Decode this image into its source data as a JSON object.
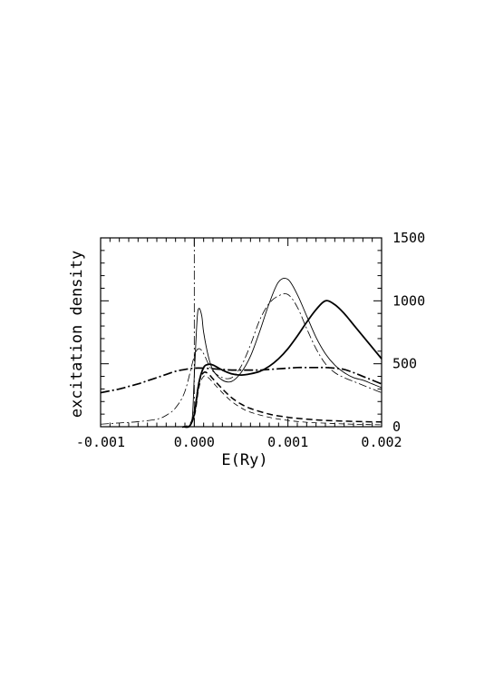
{
  "chart_data": {
    "type": "line",
    "title": "",
    "xlabel": "E(Ry)",
    "ylabel": "excitation density",
    "xlim": [
      -0.001,
      0.002
    ],
    "ylim": [
      0,
      1500
    ],
    "x_ticks": [
      -0.001,
      0.0,
      0.001,
      0.002
    ],
    "x_tick_labels": [
      "-0.001",
      "0.000",
      "0.001",
      "0.002"
    ],
    "y_ticks": [
      0,
      500,
      1000,
      1500
    ],
    "y_tick_labels": [
      "0",
      "500",
      "1000",
      "1500"
    ],
    "y_axis_side": "right",
    "grid": false,
    "legend": "none",
    "reference_line_x": 0.0,
    "series": [
      {
        "style": "thick-solid",
        "x": [
          -0.00011,
          -5e-05,
          0.0,
          5e-05,
          0.0001,
          0.00015,
          0.0002,
          0.0003,
          0.0004,
          0.0005,
          0.0006,
          0.0007,
          0.0008,
          0.0009,
          0.001,
          0.0011,
          0.0012,
          0.0013,
          0.0014,
          0.0015,
          0.0016,
          0.0017,
          0.0018,
          0.0019,
          0.002
        ],
        "values": [
          0,
          5,
          100,
          350,
          470,
          495,
          490,
          450,
          420,
          410,
          420,
          440,
          480,
          540,
          620,
          720,
          830,
          930,
          1000,
          970,
          900,
          810,
          720,
          630,
          540
        ]
      },
      {
        "style": "thin-solid",
        "x": [
          -0.0001,
          -5e-05,
          -2e-05,
          0.0,
          3e-05,
          5e-05,
          8e-05,
          0.0001,
          0.00015,
          0.0002,
          0.0003,
          0.0004,
          0.0005,
          0.0006,
          0.0007,
          0.0008,
          0.0009,
          0.001,
          0.0011,
          0.0012,
          0.0013,
          0.0014,
          0.0015,
          0.0016,
          0.0017,
          0.0018,
          0.0019,
          0.002
        ],
        "values": [
          0,
          10,
          80,
          400,
          850,
          940,
          880,
          750,
          560,
          450,
          370,
          360,
          430,
          560,
          760,
          980,
          1150,
          1170,
          1050,
          880,
          710,
          580,
          490,
          430,
          390,
          370,
          340,
          310
        ]
      },
      {
        "style": "thin-dash-dot",
        "x": [
          -0.001,
          -0.0008,
          -0.0006,
          -0.0004,
          -0.0003,
          -0.0002,
          -0.0001,
          0.0,
          5e-05,
          0.0001,
          0.00015,
          0.0002,
          0.0003,
          0.0004,
          0.0005,
          0.0006,
          0.0007,
          0.0008,
          0.0009,
          0.001,
          0.0011,
          0.0012,
          0.0013,
          0.0014,
          0.0015,
          0.0016,
          0.0017,
          0.0018,
          0.0019,
          0.002
        ],
        "values": [
          20,
          30,
          40,
          60,
          90,
          150,
          280,
          560,
          620,
          580,
          500,
          440,
          390,
          390,
          480,
          650,
          850,
          980,
          1040,
          1050,
          950,
          780,
          620,
          500,
          430,
          390,
          360,
          330,
          300,
          270
        ]
      },
      {
        "style": "thick-dash-dot",
        "x": [
          -0.001,
          -0.0009,
          -0.0008,
          -0.0007,
          -0.0006,
          -0.0005,
          -0.0004,
          -0.0003,
          -0.0002,
          -0.0001,
          0.0,
          0.0001,
          0.0002,
          0.0003,
          0.0004,
          0.0005,
          0.0006,
          0.0007,
          0.0008,
          0.0009,
          0.001,
          0.0011,
          0.0012,
          0.0013,
          0.0014,
          0.0015,
          0.0016,
          0.0017,
          0.0018,
          0.0019,
          0.002
        ],
        "values": [
          270,
          285,
          300,
          320,
          340,
          365,
          390,
          415,
          440,
          455,
          465,
          465,
          460,
          455,
          450,
          450,
          450,
          450,
          455,
          460,
          465,
          470,
          470,
          470,
          470,
          465,
          455,
          430,
          400,
          370,
          340
        ]
      },
      {
        "style": "thick-dash",
        "x": [
          -0.00012,
          -5e-05,
          0.0,
          5e-05,
          0.0001,
          0.00015,
          0.0002,
          0.0003,
          0.0004,
          0.0005,
          0.0006,
          0.0008,
          0.001,
          0.0012,
          0.0014,
          0.0016,
          0.0018,
          0.002
        ],
        "values": [
          0,
          10,
          120,
          350,
          430,
          420,
          380,
          300,
          230,
          180,
          145,
          100,
          75,
          60,
          50,
          45,
          40,
          38
        ]
      },
      {
        "style": "thin-dash",
        "x": [
          -0.001,
          -0.0008,
          -0.0006,
          -0.0004,
          -0.0002,
          -0.0001,
          0.0,
          5e-05,
          0.0001,
          0.00015,
          0.0002,
          0.0003,
          0.0004,
          0.0005,
          0.0006,
          0.0008,
          0.001,
          0.0012,
          0.0014,
          0.0016,
          0.0018,
          0.002
        ],
        "values": [
          0,
          0,
          0,
          0,
          0,
          0,
          80,
          310,
          400,
          390,
          350,
          270,
          200,
          150,
          115,
          75,
          50,
          35,
          28,
          22,
          18,
          15
        ]
      }
    ]
  }
}
